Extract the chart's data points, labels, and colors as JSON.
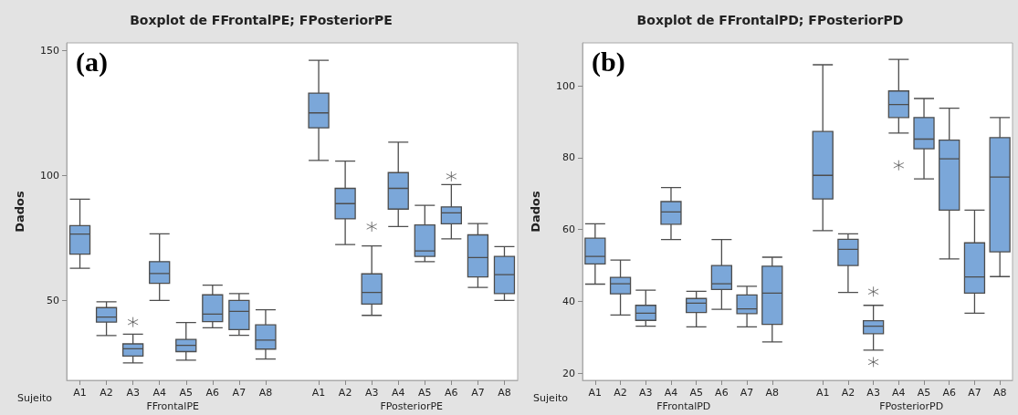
{
  "chart_data": [
    {
      "type": "box",
      "title": "Boxplot de FFrontalPE; FPosteriorPE",
      "subtitle": "(a)",
      "xlabel": "Sujeito",
      "ylabel": "Dados",
      "annotations": [
        "FFrontalPE",
        "FPosteriorPE"
      ],
      "categories": [
        "A1",
        "A2",
        "A3",
        "A4",
        "A5",
        "A6",
        "A7",
        "A8",
        "A1",
        "A2",
        "A3",
        "A4",
        "A5",
        "A6",
        "A7",
        "A8"
      ],
      "color": "#7ba7d9",
      "ylim": [
        18,
        153
      ],
      "yticks": [
        50,
        100,
        150
      ],
      "grid": false,
      "boxes": [
        {
          "low": 62.8,
          "q1": 68.5,
          "median": 76.5,
          "q3": 79.9,
          "high": 90.5
        },
        {
          "low": 35.9,
          "q1": 41.3,
          "median": 43.3,
          "q3": 47.1,
          "high": 49.4
        },
        {
          "low": 25,
          "q1": 27.7,
          "median": 30.6,
          "q3": 32.6,
          "high": 36.5,
          "outliers": [
            41.3
          ]
        },
        {
          "low": 50,
          "q1": 56.8,
          "median": 60.7,
          "q3": 65.5,
          "high": 76.6
        },
        {
          "low": 26.1,
          "q1": 29.5,
          "median": 32,
          "q3": 34.4,
          "high": 41.1
        },
        {
          "low": 39,
          "q1": 41.5,
          "median": 44.5,
          "q3": 52.2,
          "high": 56.1
        },
        {
          "low": 36,
          "q1": 38.3,
          "median": 45.6,
          "q3": 50,
          "high": 52.7
        },
        {
          "low": 26.5,
          "q1": 30.5,
          "median": 34.1,
          "q3": 40.2,
          "high": 46.2
        },
        {
          "low": 106,
          "q1": 119,
          "median": 125,
          "q3": 132.9,
          "high": 146
        },
        {
          "low": 72.3,
          "q1": 82.6,
          "median": 88.7,
          "q3": 94.8,
          "high": 105.7
        },
        {
          "low": 44,
          "q1": 48.5,
          "median": 53.2,
          "q3": 60.6,
          "high": 71.8,
          "outliers": [
            79.5
          ]
        },
        {
          "low": 79.5,
          "q1": 86.5,
          "median": 94.8,
          "q3": 101.1,
          "high": 113.3
        },
        {
          "low": 65.5,
          "q1": 67.6,
          "median": 69.8,
          "q3": 80.2,
          "high": 88
        },
        {
          "low": 74.6,
          "q1": 80.6,
          "median": 85,
          "q3": 87.4,
          "high": 96.3,
          "outliers": [
            99.6
          ]
        },
        {
          "low": 55.2,
          "q1": 59.4,
          "median": 67.1,
          "q3": 76.2,
          "high": 80.7
        },
        {
          "low": 50,
          "q1": 52.7,
          "median": 60.3,
          "q3": 67.6,
          "high": 71.5
        }
      ]
    },
    {
      "type": "box",
      "title": "Boxplot de FFrontalPD; FPosteriorPD",
      "subtitle": "(b)",
      "xlabel": "Sujeito",
      "ylabel": "Dados",
      "annotations": [
        "FFrontalPD",
        "FPosteriorPD"
      ],
      "categories": [
        "A1",
        "A2",
        "A3",
        "A4",
        "A5",
        "A6",
        "A7",
        "A8",
        "A1",
        "A2",
        "A3",
        "A4",
        "A5",
        "A6",
        "A7",
        "A8"
      ],
      "color": "#7ba7d9",
      "ylim": [
        18,
        112
      ],
      "yticks": [
        20,
        40,
        60,
        80,
        100
      ],
      "grid": false,
      "boxes": [
        {
          "low": 44.8,
          "q1": 50.4,
          "median": 52.5,
          "q3": 57.6,
          "high": 61.6
        },
        {
          "low": 36.2,
          "q1": 42.1,
          "median": 44.9,
          "q3": 46.7,
          "high": 51.5
        },
        {
          "low": 33.1,
          "q1": 34.7,
          "median": 36.7,
          "q3": 38.9,
          "high": 43.1
        },
        {
          "low": 57.2,
          "q1": 61.5,
          "median": 64.9,
          "q3": 67.8,
          "high": 71.7
        },
        {
          "low": 32.9,
          "q1": 36.9,
          "median": 39.5,
          "q3": 40.8,
          "high": 42.8
        },
        {
          "low": 37.8,
          "q1": 43.3,
          "median": 44.9,
          "q3": 50,
          "high": 57.2
        },
        {
          "low": 32.9,
          "q1": 36.6,
          "median": 37.9,
          "q3": 41.8,
          "high": 44.2
        },
        {
          "low": 28.7,
          "q1": 33.6,
          "median": 42.3,
          "q3": 49.8,
          "high": 52.3
        },
        {
          "low": 59.7,
          "q1": 68.5,
          "median": 75.1,
          "q3": 87.3,
          "high": 105.9
        },
        {
          "low": 42.5,
          "q1": 50,
          "median": 54.5,
          "q3": 57.3,
          "high": 58.8
        },
        {
          "low": 26.4,
          "q1": 31,
          "median": 33.1,
          "q3": 34.6,
          "high": 38.9,
          "outliers": [
            42.7,
            23.1
          ]
        },
        {
          "low": 86.9,
          "q1": 91.2,
          "median": 94.8,
          "q3": 98.6,
          "high": 107.4,
          "outliers": [
            77.9
          ]
        },
        {
          "low": 74.1,
          "q1": 82.5,
          "median": 85.2,
          "q3": 91.2,
          "high": 96.5
        },
        {
          "low": 51.8,
          "q1": 65.4,
          "median": 79.7,
          "q3": 84.9,
          "high": 93.8
        },
        {
          "low": 36.7,
          "q1": 42.3,
          "median": 46.8,
          "q3": 56.3,
          "high": 65.4
        },
        {
          "low": 46.9,
          "q1": 53.8,
          "median": 74.6,
          "q3": 85.6,
          "high": 91.2
        }
      ]
    }
  ]
}
